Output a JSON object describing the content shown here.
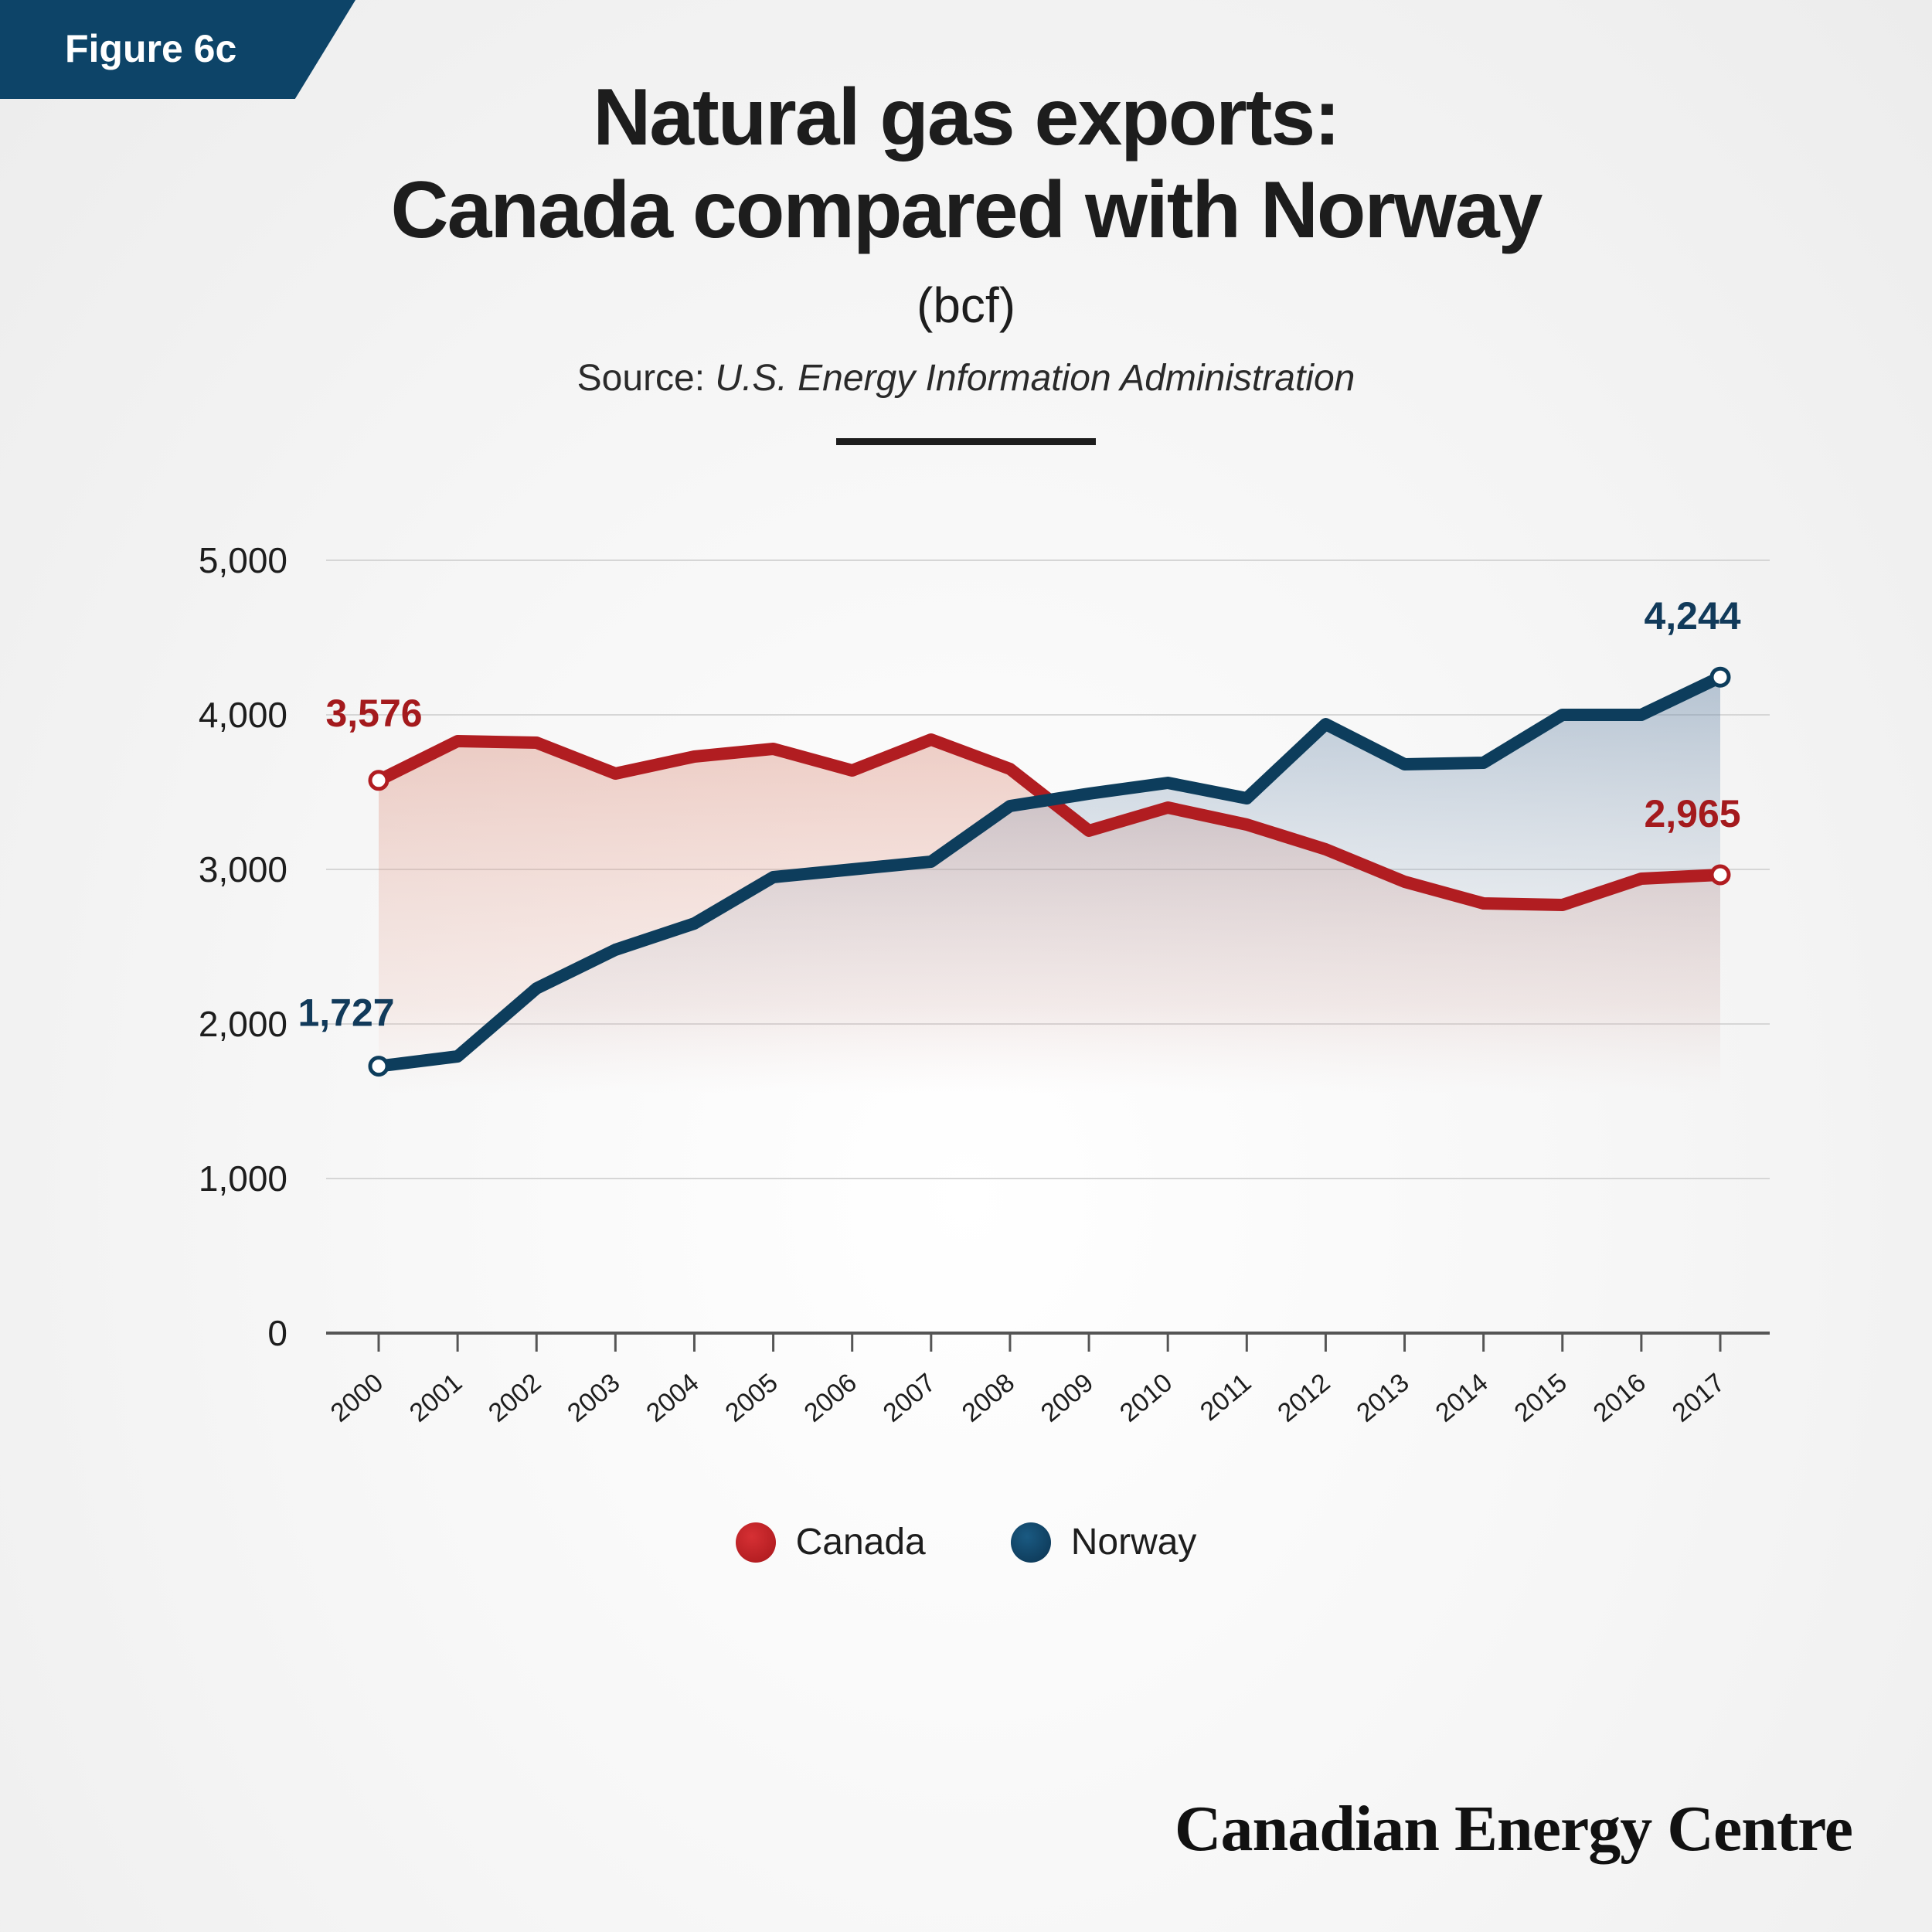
{
  "figure_label": "Figure 6c",
  "title_line1": "Natural gas exports:",
  "title_line2": "Canada compared with Norway",
  "unit": "(bcf)",
  "source_prefix": "Source:",
  "source_name": "U.S. Energy Information Administration",
  "brand": "Canadian Energy Centre",
  "colors": {
    "canada": "#b11d21",
    "norway": "#0d3d5c",
    "label_canada": "#a41a1d",
    "label_norway": "#113a5a"
  },
  "chart_data": {
    "type": "line",
    "x": [
      "2000",
      "2001",
      "2002",
      "2003",
      "2004",
      "2005",
      "2006",
      "2007",
      "2008",
      "2009",
      "2010",
      "2011",
      "2012",
      "2013",
      "2014",
      "2015",
      "2016",
      "2017"
    ],
    "ylim": [
      0,
      5000
    ],
    "yticks": [
      0,
      1000,
      2000,
      3000,
      4000,
      5000
    ],
    "ytick_labels": [
      "0",
      "1,000",
      "2,000",
      "3,000",
      "4,000",
      "5,000"
    ],
    "grid": true,
    "legend_position": "bottom-center",
    "series": [
      {
        "name": "Canada",
        "color": "#b11d21",
        "values": [
          3576,
          3830,
          3820,
          3620,
          3730,
          3780,
          3640,
          3840,
          3650,
          3250,
          3400,
          3290,
          3130,
          2920,
          2780,
          2770,
          2940,
          2965
        ],
        "start_label": "3,576",
        "end_label": "2,965"
      },
      {
        "name": "Norway",
        "color": "#0d3d5c",
        "values": [
          1727,
          1790,
          2230,
          2480,
          2650,
          2950,
          3000,
          3050,
          3410,
          3490,
          3560,
          3460,
          3940,
          3680,
          3690,
          4000,
          4000,
          4244
        ],
        "start_label": "1,727",
        "end_label": "4,244"
      }
    ]
  }
}
